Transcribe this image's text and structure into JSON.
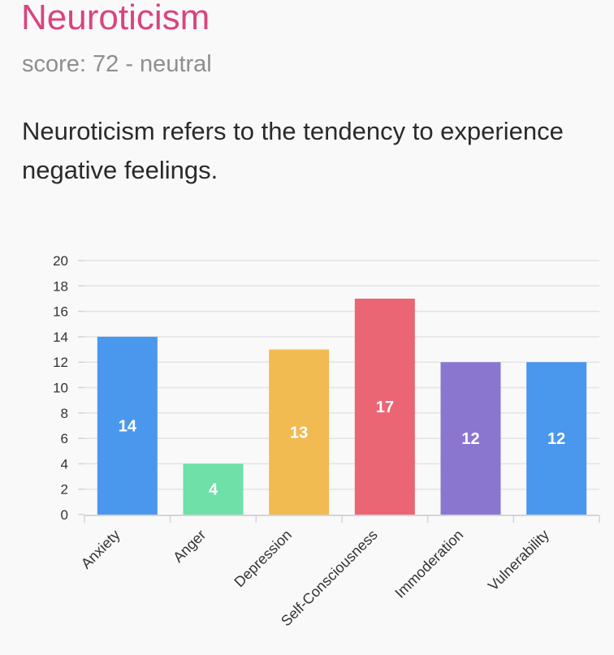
{
  "header": {
    "title": "Neuroticism",
    "score": "score: 72 - neutral",
    "description": "Neuroticism refers to the tendency to experience negative feelings."
  },
  "colors": {
    "title": "#d9447f",
    "bars": [
      "#4a97ee",
      "#6ee0a8",
      "#f1bb52",
      "#ea6674",
      "#8a76cf",
      "#4a97ee"
    ]
  },
  "chart_data": {
    "type": "bar",
    "categories": [
      "Anxiety",
      "Anger",
      "Depression",
      "Self-Consciousness",
      "Immoderation",
      "Vulnerability"
    ],
    "values": [
      14,
      4,
      13,
      17,
      12,
      12
    ],
    "value_labels": [
      "14",
      "4",
      "13",
      "17",
      "12",
      "12"
    ],
    "yticks": [
      "0",
      "2",
      "4",
      "6",
      "8",
      "10",
      "12",
      "14",
      "16",
      "18",
      "20"
    ],
    "ylim": [
      0,
      20
    ],
    "title": "",
    "xlabel": "",
    "ylabel": "",
    "grid": true,
    "legend": "none"
  }
}
